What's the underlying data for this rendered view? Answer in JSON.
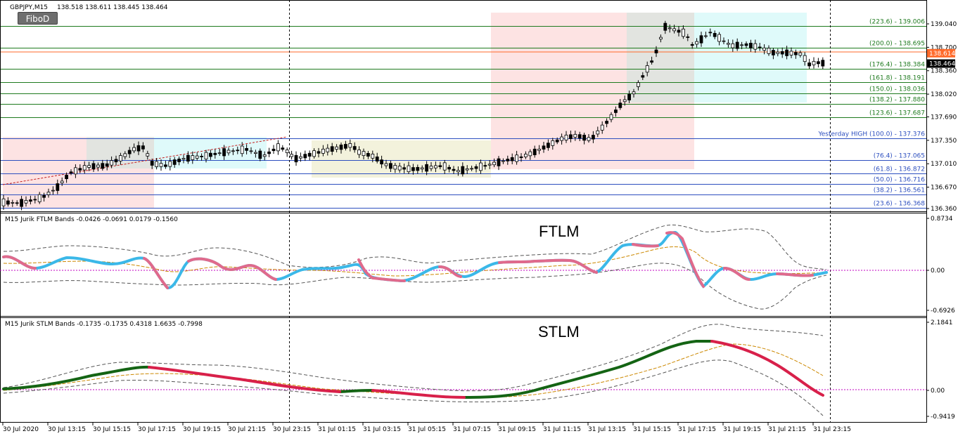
{
  "header": {
    "symbol": "GBPJPY,M15",
    "ohlc": "138.518 138.611 138.445 138.464"
  },
  "toolbar": {
    "fibo_label": "FiboD"
  },
  "price_axis": {
    "ticks": [
      "139.040",
      "138.700",
      "138.360",
      "138.020",
      "137.690",
      "137.350",
      "137.010",
      "136.670",
      "136.360"
    ],
    "tags": [
      {
        "text": "138.614",
        "bg": "#ff6a2a",
        "fg": "#ffffff"
      },
      {
        "text": "138.464",
        "bg": "#000000",
        "fg": "#ffffff"
      }
    ]
  },
  "fib_levels": [
    {
      "label": "(223.6) - 139.006",
      "price": 139.006,
      "color": "#1e7a1e"
    },
    {
      "label": "(200.0) - 138.695",
      "price": 138.695,
      "color": "#1e7a1e"
    },
    {
      "label": "(176.4) - 138.384",
      "price": 138.384,
      "color": "#1e7a1e"
    },
    {
      "label": "(161.8) - 138.191",
      "price": 138.191,
      "color": "#1e7a1e"
    },
    {
      "label": "(150.0) - 138.036",
      "price": 138.036,
      "color": "#1e7a1e"
    },
    {
      "label": "(138.2) - 137.880",
      "price": 137.88,
      "color": "#1e7a1e"
    },
    {
      "label": "(123.6) - 137.687",
      "price": 137.687,
      "color": "#1e7a1e"
    },
    {
      "label": "Yesterday HIGH (100.0) - 137.376",
      "price": 137.376,
      "color": "#2d4fbf"
    },
    {
      "label": "(76.4) - 137.065",
      "price": 137.065,
      "color": "#2d4fbf"
    },
    {
      "label": "(61.8) - 136.872",
      "price": 136.872,
      "color": "#2d4fbf"
    },
    {
      "label": "(50.0) - 136.716",
      "price": 136.716,
      "color": "#2d4fbf"
    },
    {
      "label": "(38.2) - 136.561",
      "price": 136.561,
      "color": "#2d4fbf"
    },
    {
      "label": "(23.6) - 136.368",
      "price": 136.368,
      "color": "#2d4fbf"
    }
  ],
  "ftlm": {
    "caption": "M15 Jurik FTLM Bands  -0.0426 -0.0691 0.0179 -0.1560",
    "title": "FTLM",
    "ticks": [
      "0.8734",
      "0.00",
      "-0.6926"
    ]
  },
  "stlm": {
    "caption": "M15 Jurik STLM Bands  -0.1735 -0.1735 0.4318 1.6635 -0.7998",
    "title": "STLM",
    "ticks": [
      "2.1841",
      "0.00",
      "-0.9419"
    ]
  },
  "time_axis": [
    "30 Jul 2020",
    "30 Jul 13:15",
    "30 Jul 15:15",
    "30 Jul 17:15",
    "30 Jul 19:15",
    "30 Jul 21:15",
    "30 Jul 23:15",
    "31 Jul 01:15",
    "31 Jul 03:15",
    "31 Jul 05:15",
    "31 Jul 07:15",
    "31 Jul 09:15",
    "31 Jul 11:15",
    "31 Jul 13:15",
    "31 Jul 15:15",
    "31 Jul 17:15",
    "31 Jul 19:15",
    "31 Jul 21:15",
    "31 Jul 23:15"
  ],
  "colors": {
    "fib_green": "#1e7a1e",
    "fib_blue": "#2d4fbf",
    "current_price": "#ff6a2a",
    "ftlm_up": "#3bb8e8",
    "ftlm_down": "#e06a8c",
    "stlm_up": "#146414",
    "stlm_down": "#d8204a",
    "signal": "#cc8800",
    "zero_line": "#c000c0",
    "zone_red": "#fde3e3",
    "zone_gray": "#e2e4e0",
    "zone_cyan": "#dffafa",
    "zone_yellow": "#f3f2dc"
  }
}
